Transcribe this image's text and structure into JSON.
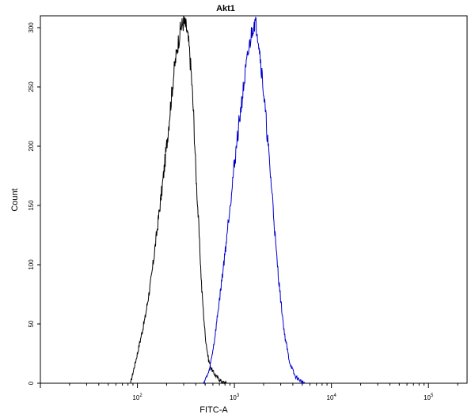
{
  "chart_data": {
    "type": "line",
    "title": "Akt1",
    "xlabel": "FITC-A",
    "ylabel": "Count",
    "x_scale": "log",
    "xlim": [
      10,
      250000
    ],
    "ylim": [
      0,
      310
    ],
    "x_ticks": [
      {
        "value": 100,
        "base": "10",
        "exp": "2"
      },
      {
        "value": 1000,
        "base": "10",
        "exp": "3"
      },
      {
        "value": 10000,
        "base": "10",
        "exp": "4"
      },
      {
        "value": 100000,
        "base": "10",
        "exp": "5"
      }
    ],
    "y_ticks": [
      0,
      50,
      100,
      150,
      200,
      250,
      300
    ],
    "grid": false,
    "legend": "none",
    "series": [
      {
        "color": "#000000",
        "x": [
          85,
          100,
          120,
          140,
          160,
          180,
          200,
          220,
          240,
          260,
          280,
          300,
          320,
          340,
          360,
          380,
          400,
          430,
          460,
          500,
          540,
          580,
          620,
          680,
          750,
          850
        ],
        "y": [
          0,
          25,
          55,
          90,
          130,
          165,
          200,
          235,
          265,
          285,
          300,
          305,
          300,
          285,
          260,
          225,
          180,
          130,
          80,
          40,
          20,
          12,
          8,
          4,
          1,
          0
        ]
      },
      {
        "color": "#0000cc",
        "x": [
          480,
          550,
          620,
          700,
          800,
          900,
          1000,
          1100,
          1200,
          1300,
          1400,
          1500,
          1600,
          1700,
          1800,
          1900,
          2000,
          2150,
          2300,
          2500,
          2700,
          3000,
          3300,
          3700,
          4200,
          4800,
          5300
        ],
        "y": [
          0,
          10,
          35,
          70,
          110,
          150,
          185,
          215,
          240,
          262,
          280,
          295,
          305,
          300,
          285,
          265,
          245,
          215,
          185,
          150,
          110,
          70,
          40,
          18,
          6,
          2,
          0
        ]
      }
    ]
  }
}
